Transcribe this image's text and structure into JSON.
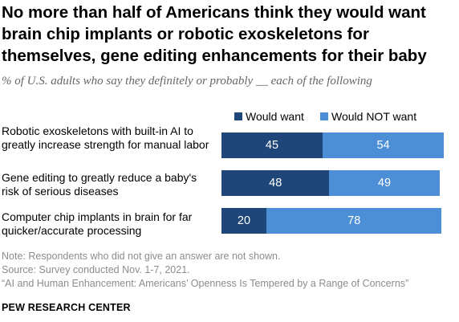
{
  "chart_data": {
    "type": "bar",
    "orientation": "horizontal",
    "stacked": true,
    "title": "No more than half of Americans think they would want brain chip implants or robotic exoskeletons for themselves, gene editing enhancements for their baby",
    "subtitle": "% of U.S. adults who say they definitely or probably __ each of the following",
    "categories": [
      "Robotic exoskeletons with built-in AI to greatly increase strength for manual labor",
      "Gene editing to greatly reduce a baby's risk of serious diseases",
      "Computer chip implants in brain for far quicker/accurate processing"
    ],
    "series": [
      {
        "name": "Would want",
        "values": [
          45,
          48,
          20
        ],
        "color": "#1f4679"
      },
      {
        "name": "Would NOT want",
        "values": [
          54,
          49,
          78
        ],
        "color": "#4d8fd6"
      }
    ],
    "xlim": [
      0,
      100
    ],
    "grid": false,
    "legend_position": "top"
  },
  "notes": {
    "note": "Note: Respondents who did not give an answer are not shown.",
    "source": "Source: Survey conducted Nov. 1-7, 2021.",
    "report": "“AI and Human Enhancement: Americans’ Openness Is Tempered by a Range of Concerns”",
    "organization": "PEW RESEARCH CENTER"
  }
}
